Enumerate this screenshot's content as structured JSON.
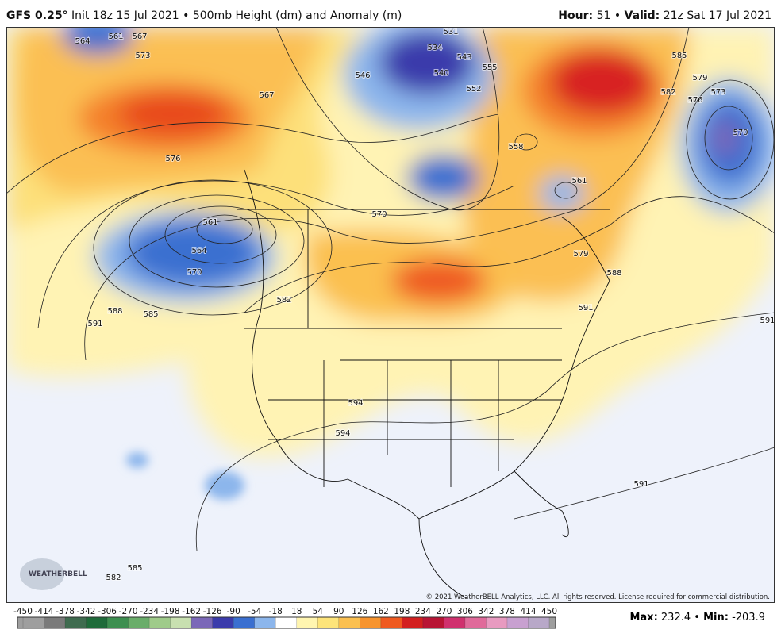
{
  "header": {
    "model": "GFS 0.25°",
    "init": "Init 18z 15 Jul 2021 • 500mb Height (dm) and Anomaly (m)",
    "hour_label": "Hour:",
    "hour_value": "51 •",
    "valid_label": "Valid:",
    "valid_value": "21z Sat 17 Jul 2021"
  },
  "map": {
    "contour_labels": [
      564,
      561,
      567,
      573,
      567,
      576,
      561,
      564,
      570,
      588,
      585,
      591,
      582,
      570,
      546,
      534,
      531,
      540,
      543,
      555,
      552,
      558,
      561,
      579,
      588,
      591,
      585,
      582,
      579,
      576,
      573,
      570,
      591,
      594,
      594,
      591,
      582,
      585
    ],
    "logo": "WEATHERBELL",
    "copyright": "© 2021 WeatherBELL Analytics, LLC. All rights reserved. License required for commercial distribution."
  },
  "colorbar": {
    "ticks": [
      -450,
      -414,
      -378,
      -342,
      -306,
      -270,
      -234,
      -198,
      -162,
      -126,
      -90,
      -54,
      -18,
      18,
      54,
      90,
      126,
      162,
      198,
      234,
      270,
      306,
      342,
      378,
      414,
      450
    ],
    "colors": [
      "#9e9e9e",
      "#7a7a7a",
      "#3f6b4f",
      "#1f6b3a",
      "#3d8f50",
      "#6aad6a",
      "#9fcb8a",
      "#c8e0b0",
      "#7b68b8",
      "#3b3bab",
      "#3a6fd0",
      "#8cb6ec",
      "#ffffff",
      "#fff5b0",
      "#fde47a",
      "#fbc050",
      "#f7942e",
      "#ef5a20",
      "#d31f1f",
      "#b81434",
      "#d0306e",
      "#e06a9a",
      "#e89ac0",
      "#c8a0d0",
      "#b8a8c8"
    ]
  },
  "footer": {
    "max_label": "Max:",
    "max_value": "232.4 •",
    "min_label": "Min:",
    "min_value": "-203.9"
  }
}
